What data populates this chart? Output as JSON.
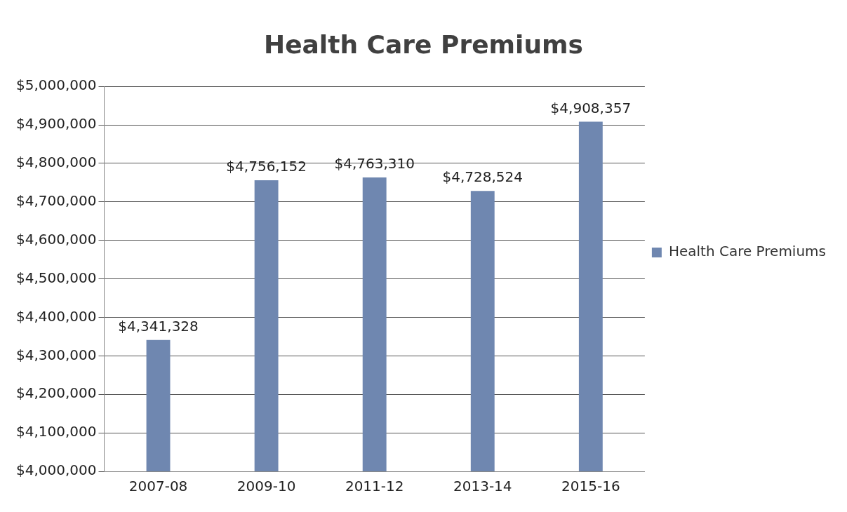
{
  "chart_data": {
    "type": "bar",
    "title": "Health Care Premiums",
    "categories": [
      "2007-08",
      "2009-10",
      "2011-12",
      "2013-14",
      "2015-16"
    ],
    "series": [
      {
        "name": "Health Care Premiums",
        "color": "#6f87b0",
        "values": [
          4341328,
          4756152,
          4763310,
          4728524,
          4908357
        ],
        "value_labels": [
          "$4,341,328",
          "$4,756,152",
          "$4,763,310",
          "$4,728,524",
          "$4,908,357"
        ]
      }
    ],
    "ylim": [
      4000000,
      5000000
    ],
    "yticks": [
      {
        "value": 4000000,
        "label": "$4,000,000"
      },
      {
        "value": 4100000,
        "label": "$4,100,000"
      },
      {
        "value": 4200000,
        "label": "$4,200,000"
      },
      {
        "value": 4300000,
        "label": "$4,300,000"
      },
      {
        "value": 4400000,
        "label": "$4,400,000"
      },
      {
        "value": 4500000,
        "label": "$4,500,000"
      },
      {
        "value": 4600000,
        "label": "$4,600,000"
      },
      {
        "value": 4700000,
        "label": "$4,700,000"
      },
      {
        "value": 4800000,
        "label": "$4,800,000"
      },
      {
        "value": 4900000,
        "label": "$4,900,000"
      },
      {
        "value": 5000000,
        "label": "$5,000,000"
      }
    ],
    "grid": "y",
    "legend": "right"
  }
}
